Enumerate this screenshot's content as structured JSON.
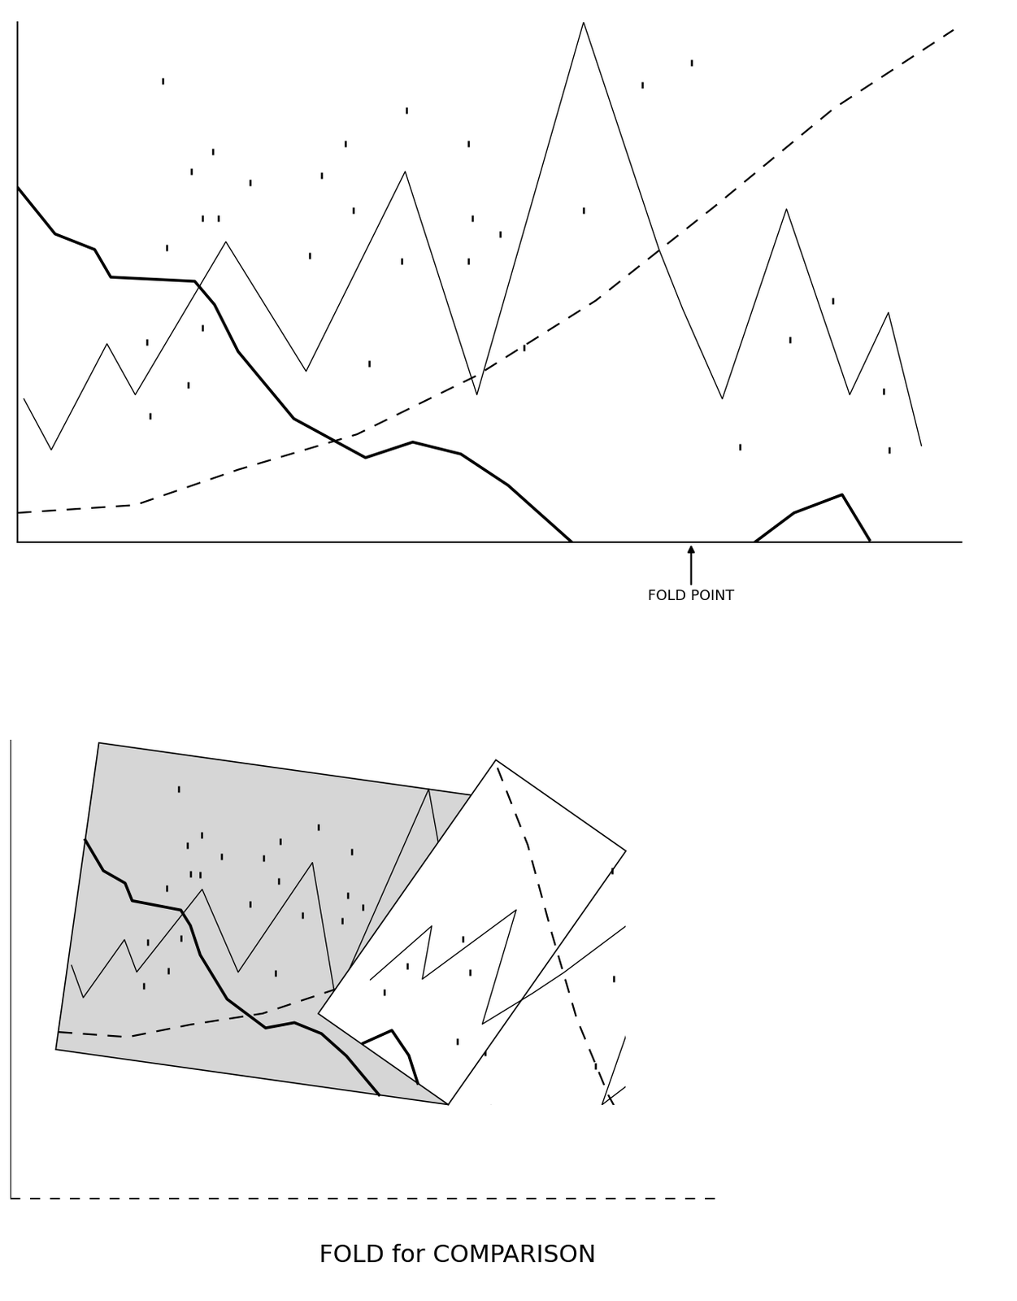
{
  "chart_data": {
    "type": "line",
    "xlim": [
      0,
      100
    ],
    "ylim": [
      0,
      100
    ],
    "tick_labels": false,
    "series": [
      {
        "type": "line",
        "color": "#000000",
        "line_style": "solid",
        "x": [
          0,
          4.0,
          8.2,
          9.9,
          18.8,
          20.9,
          23.4,
          29.3,
          36.9,
          41.9,
          47.0,
          52.0,
          58.8,
          null,
          78.1,
          82.3,
          87.4,
          90.3
        ],
        "values": [
          68.3,
          59.3,
          56.3,
          51.0,
          50.2,
          45.7,
          36.7,
          23.8,
          16.3,
          19.3,
          17.0,
          11.0,
          0,
          null,
          0,
          5.7,
          9.2,
          0.5
        ]
      },
      {
        "type": "line",
        "color": "#000000",
        "line_style": "solid",
        "x": [
          0.7,
          3.6,
          9.5,
          12.5,
          22.1,
          30.6,
          41.1,
          48.7,
          60.0,
          68.0,
          70.5,
          74.7,
          81.5,
          88.2,
          92.3,
          95.8
        ],
        "values": [
          27.6,
          17.8,
          38.2,
          28.4,
          57.8,
          32.9,
          71.3,
          28.4,
          100,
          56.3,
          44.9,
          27.6,
          64.1,
          28.4,
          44.2,
          18.6
        ]
      },
      {
        "type": "line",
        "color": "#000000",
        "line_style": "dashed",
        "x": [
          0,
          12.5,
          23.4,
          36.0,
          48.7,
          61.3,
          73.9,
          86.5,
          99.2
        ],
        "values": [
          5.7,
          7.2,
          14.0,
          20.8,
          32.1,
          46.5,
          64.6,
          83.4,
          98.5
        ]
      },
      {
        "type": "scatter",
        "color": "#000000",
        "marker": "|",
        "x": [
          15.4,
          20.7,
          18.4,
          24.7,
          32.2,
          34.8,
          41.2,
          47.8,
          71.4,
          66.2,
          19.6,
          21.3,
          15.8,
          35.6,
          48.2,
          51.2,
          60.0,
          31.0,
          40.7,
          47.8,
          13.7,
          19.6,
          18.1,
          14.1,
          37.3,
          53.7,
          86.4,
          81.9,
          91.8,
          76.6,
          92.4
        ],
        "values": [
          88.7,
          75.1,
          71.3,
          69.1,
          70.6,
          76.6,
          83.0,
          76.6,
          92.2,
          87.9,
          62.3,
          62.3,
          56.6,
          63.8,
          62.3,
          59.3,
          63.8,
          55.1,
          54.0,
          54.0,
          38.5,
          41.2,
          30.3,
          24.3,
          34.4,
          37.4,
          46.5,
          38.9,
          29.1,
          18.3,
          17.8
        ]
      }
    ],
    "annotation": {
      "text": "FOLD POINT",
      "x": 71.4
    },
    "caption": "FOLD for COMPARISON"
  }
}
